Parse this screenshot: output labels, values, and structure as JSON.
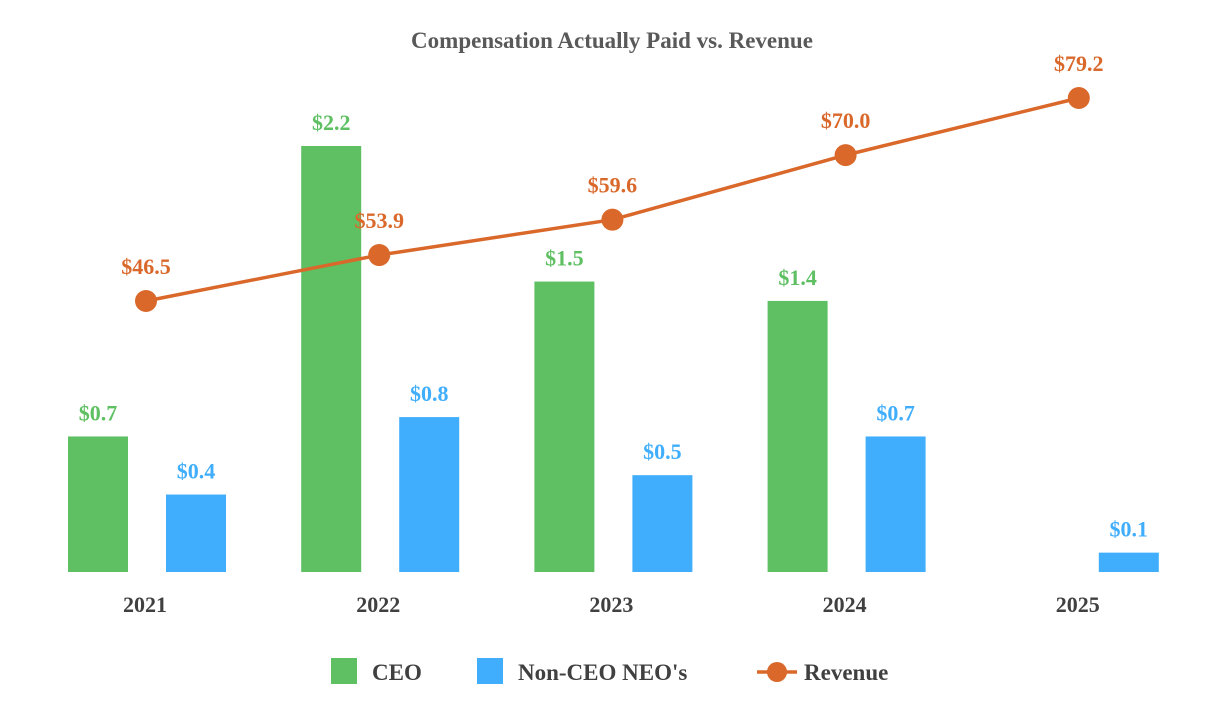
{
  "chart_data": {
    "type": "bar",
    "title": "Compensation Actually Paid vs. Revenue",
    "categories": [
      "2021",
      "2022",
      "2023",
      "2024",
      "2025"
    ],
    "series": [
      {
        "name": "CEO",
        "kind": "bar",
        "color": "#5ec062",
        "values": [
          0.7,
          2.2,
          1.5,
          1.4,
          null
        ],
        "labels": [
          "$0.7",
          "$2.2",
          "$1.5",
          "$1.4",
          null
        ]
      },
      {
        "name": "Non-CEO NEO's",
        "kind": "bar",
        "color": "#40aefc",
        "values": [
          0.4,
          0.8,
          0.5,
          0.7,
          0.1
        ],
        "labels": [
          "$0.4",
          "$0.8",
          "$0.5",
          "$0.7",
          "$0.1"
        ]
      },
      {
        "name": "Revenue",
        "kind": "line",
        "color": "#d9682a",
        "values": [
          46.5,
          53.9,
          59.6,
          70.0,
          79.2
        ],
        "labels": [
          "$46.5",
          "$53.9",
          "$59.6",
          "$70.0",
          "$79.2"
        ]
      }
    ],
    "bar_axis": {
      "range": [
        0,
        2.2
      ],
      "visible": false
    },
    "line_axis": {
      "range": [
        0,
        110
      ],
      "visible": false
    },
    "xlabel": "",
    "ylabel": "",
    "grid": false,
    "legend_position": "bottom-center"
  }
}
